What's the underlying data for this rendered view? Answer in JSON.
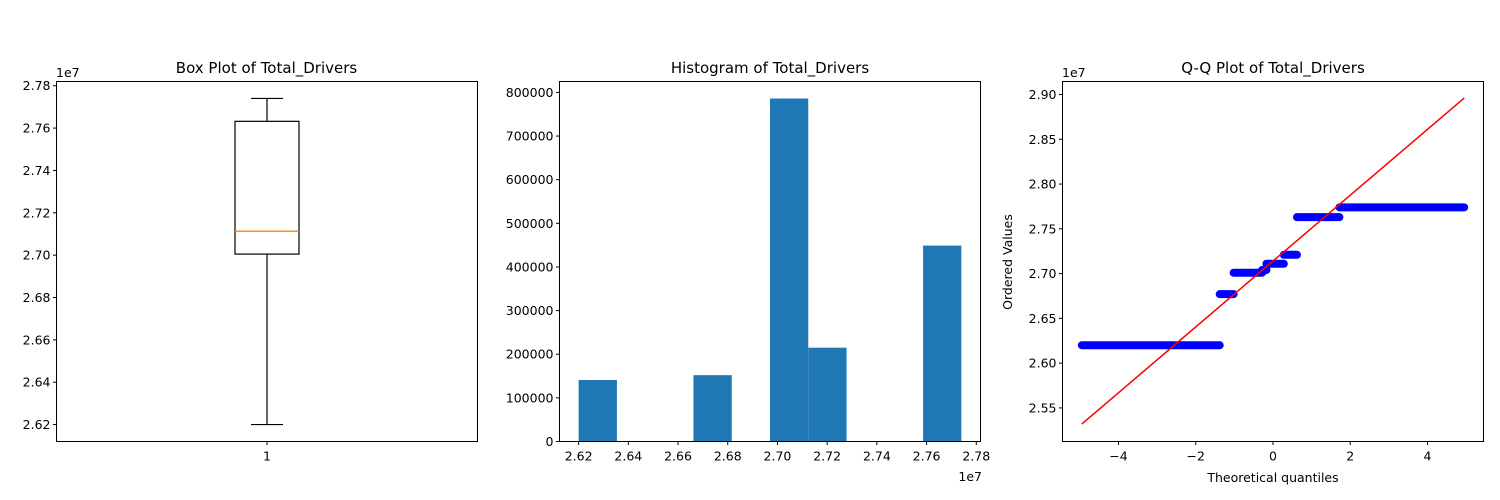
{
  "colors": {
    "histogram": "#1f77b4",
    "median": "#ff7f0e",
    "qq_points": "#0000ff",
    "qq_line": "#ff0000"
  },
  "chart_data": [
    {
      "type": "box",
      "title": "Box Plot of Total_Drivers",
      "xlabel": "",
      "ylabel": "",
      "offset_text": "1e7",
      "x_ticks": [
        "1"
      ],
      "y_ticks": [
        2.62,
        2.64,
        2.66,
        2.68,
        2.7,
        2.72,
        2.74,
        2.76,
        2.78
      ],
      "y_tick_labels": [
        "2.62",
        "2.64",
        "2.66",
        "2.68",
        "2.70",
        "2.72",
        "2.74",
        "2.76",
        "2.78"
      ],
      "ylim": [
        2.612,
        2.782
      ],
      "box": {
        "whisker_low": 2.62,
        "q1": 2.7005,
        "median": 2.7113,
        "q3": 2.7632,
        "whisker_high": 2.774
      }
    },
    {
      "type": "bar",
      "title": "Histogram of Total_Drivers",
      "xlabel": "",
      "ylabel": "",
      "offset_text": "1e7",
      "x_ticks": [
        2.62,
        2.64,
        2.66,
        2.68,
        2.7,
        2.72,
        2.74,
        2.76,
        2.78
      ],
      "x_tick_labels": [
        "2.62",
        "2.64",
        "2.66",
        "2.68",
        "2.70",
        "2.72",
        "2.74",
        "2.76",
        "2.78"
      ],
      "y_ticks": [
        0,
        100000,
        200000,
        300000,
        400000,
        500000,
        600000,
        700000,
        800000
      ],
      "y_tick_labels": [
        "0",
        "100000",
        "200000",
        "300000",
        "400000",
        "500000",
        "600000",
        "700000",
        "800000"
      ],
      "xlim": [
        2.6123,
        2.7817
      ],
      "ylim": [
        0,
        825000
      ],
      "bins": [
        {
          "x0": 2.62,
          "x1": 2.6354,
          "count": 141000
        },
        {
          "x0": 2.6354,
          "x1": 2.6508,
          "count": 0
        },
        {
          "x0": 2.6508,
          "x1": 2.6662,
          "count": 0
        },
        {
          "x0": 2.6662,
          "x1": 2.6816,
          "count": 152000
        },
        {
          "x0": 2.6816,
          "x1": 2.697,
          "count": 0
        },
        {
          "x0": 2.697,
          "x1": 2.7124,
          "count": 786000
        },
        {
          "x0": 2.7124,
          "x1": 2.7278,
          "count": 215000
        },
        {
          "x0": 2.7278,
          "x1": 2.7432,
          "count": 0
        },
        {
          "x0": 2.7432,
          "x1": 2.7586,
          "count": 0
        },
        {
          "x0": 2.7586,
          "x1": 2.774,
          "count": 449000
        }
      ]
    },
    {
      "type": "scatter",
      "title": "Q-Q Plot of Total_Drivers",
      "xlabel": "Theoretical quantiles",
      "ylabel": "Ordered Values",
      "offset_text": "1e7",
      "x_ticks": [
        -4,
        -2,
        0,
        2,
        4
      ],
      "x_tick_labels": [
        "−4",
        "−2",
        "0",
        "2",
        "4"
      ],
      "y_ticks": [
        2.55,
        2.6,
        2.65,
        2.7,
        2.75,
        2.8,
        2.85,
        2.9
      ],
      "y_tick_labels": [
        "2.55",
        "2.60",
        "2.65",
        "2.70",
        "2.75",
        "2.80",
        "2.85",
        "2.90"
      ],
      "xlim": [
        -5.45,
        5.45
      ],
      "ylim": [
        2.5125,
        2.9145
      ],
      "segments": [
        {
          "x0": -4.95,
          "x1": -1.38,
          "y": 2.62
        },
        {
          "x0": -1.38,
          "x1": -1.02,
          "y": 2.677
        },
        {
          "x0": -1.02,
          "x1": -0.28,
          "y": 2.701
        },
        {
          "x0": -0.28,
          "x1": -0.17,
          "y": 2.704
        },
        {
          "x0": -0.17,
          "x1": 0.28,
          "y": 2.711
        },
        {
          "x0": 0.28,
          "x1": 0.62,
          "y": 2.721
        },
        {
          "x0": 0.62,
          "x1": 1.72,
          "y": 2.763
        },
        {
          "x0": 1.72,
          "x1": 4.95,
          "y": 2.774
        }
      ],
      "fit_line": {
        "x": [
          -4.95,
          4.95
        ],
        "y": [
          2.532,
          2.896
        ]
      }
    }
  ]
}
